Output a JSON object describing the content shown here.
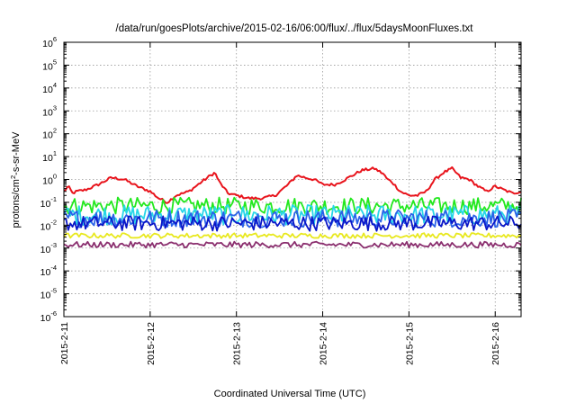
{
  "chart_data": {
    "type": "line",
    "title": "/data/run/goesPlots/archive/2015-02-16/06:00/flux/../flux/5daysMoonFluxes.txt",
    "xlabel": "Coordinated Universal Time (UTC)",
    "ylabel": {
      "prefix": "protons/cm",
      "superscript": "2",
      "suffix": "-s-sr-MeV"
    },
    "yscale": "log",
    "ylim_exponents": [
      -6,
      6
    ],
    "y_tick_exponents": [
      -6,
      -5,
      -4,
      -3,
      -2,
      -1,
      0,
      1,
      2,
      3,
      4,
      5,
      6
    ],
    "y_tick_base": "10",
    "xlim_days": [
      0,
      5.3
    ],
    "x_ticks": [
      "2015-2-11",
      "2015-2-12",
      "2015-2-13",
      "2015-2-14",
      "2015-2-15",
      "2015-2-16"
    ],
    "grid": true,
    "legend": "none",
    "series": [
      {
        "color": "#e8141c",
        "x": [
          0,
          0.05,
          0.1,
          0.15,
          0.25,
          0.4,
          0.55,
          0.7,
          0.85,
          1.0,
          1.1,
          1.2,
          1.3,
          1.45,
          1.6,
          1.7,
          1.75,
          1.8,
          1.9,
          2.0,
          2.15,
          2.3,
          2.45,
          2.6,
          2.7,
          2.8,
          2.9,
          3.0,
          3.15,
          3.3,
          3.45,
          3.6,
          3.7,
          3.75,
          3.8,
          3.9,
          4.0,
          4.1,
          4.2,
          4.3,
          4.4,
          4.5,
          4.6,
          4.7,
          4.8,
          4.9,
          5.0,
          5.1,
          5.2,
          5.3
        ],
        "y": [
          0.3,
          0.5,
          0.25,
          0.3,
          0.35,
          0.6,
          1.2,
          1.0,
          0.5,
          0.3,
          0.15,
          0.1,
          0.2,
          0.3,
          0.8,
          1.5,
          2.0,
          0.8,
          0.25,
          0.2,
          0.15,
          0.15,
          0.2,
          0.6,
          1.5,
          1.2,
          1.0,
          0.6,
          0.6,
          1.2,
          2.5,
          3.0,
          1.8,
          1.0,
          0.8,
          0.3,
          0.2,
          0.2,
          0.3,
          1.0,
          2.0,
          3.0,
          1.2,
          1.0,
          0.5,
          0.3,
          0.5,
          0.35,
          0.25,
          0.3
        ]
      },
      {
        "color": "#22e81e",
        "y_center": 0.07,
        "variation": 0.17
      },
      {
        "color": "#26d6e8",
        "y_center": 0.028,
        "variation": 0.2
      },
      {
        "color": "#2a62e8",
        "y_center": 0.02,
        "variation": 0.18
      },
      {
        "color": "#0a16c8",
        "y_center": 0.012,
        "variation": 0.15
      },
      {
        "color": "#e8e81e",
        "y_center": 0.0035,
        "variation": 0.05
      },
      {
        "color": "#8a2e6e",
        "y_center": 0.0014,
        "variation": 0.06
      }
    ]
  }
}
